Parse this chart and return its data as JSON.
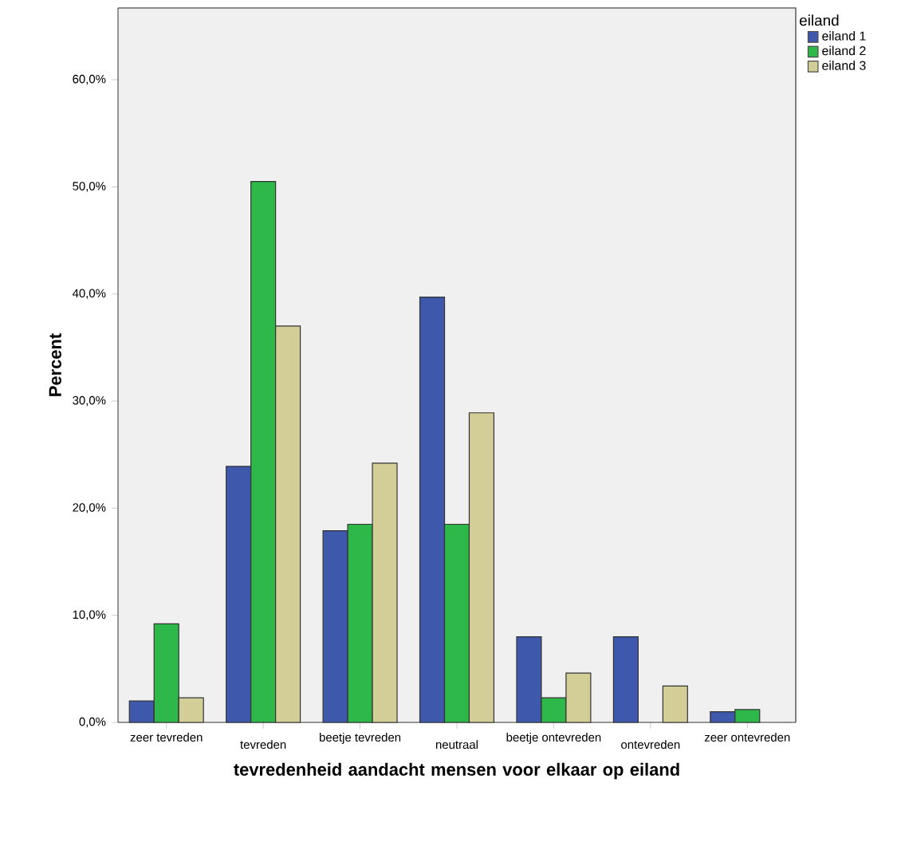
{
  "chart_data": {
    "type": "bar",
    "xlabel": "tevredenheid aandacht mensen voor elkaar op eiland",
    "ylabel": "Percent",
    "legend_title": "eiland",
    "legend": "top right",
    "categories": [
      "zeer tevreden",
      "tevreden",
      "beetje tevreden",
      "neutraal",
      "beetje ontevreden",
      "ontevreden",
      "zeer ontevreden"
    ],
    "series": [
      {
        "name": "eiland 1",
        "color": "#3e58ac",
        "values": [
          2.0,
          23.9,
          17.9,
          39.7,
          8.0,
          8.0,
          1.0
        ]
      },
      {
        "name": "eiland 2",
        "color": "#2fb84a",
        "values": [
          9.2,
          50.5,
          18.5,
          18.5,
          2.3,
          null,
          1.2
        ]
      },
      {
        "name": "eiland 3",
        "color": "#d3ce97",
        "values": [
          2.3,
          37.0,
          24.2,
          28.9,
          4.6,
          3.4,
          null
        ]
      }
    ],
    "ylim": [
      0,
      66.7
    ],
    "yticks": [
      {
        "value": 0,
        "label": "0,0%"
      },
      {
        "value": 10,
        "label": "10,0%"
      },
      {
        "value": 20,
        "label": "20,0%"
      },
      {
        "value": 30,
        "label": "30,0%"
      },
      {
        "value": 40,
        "label": "40,0%"
      },
      {
        "value": 50,
        "label": "50,0%"
      },
      {
        "value": 60,
        "label": "60,0%"
      }
    ],
    "grid": false
  }
}
